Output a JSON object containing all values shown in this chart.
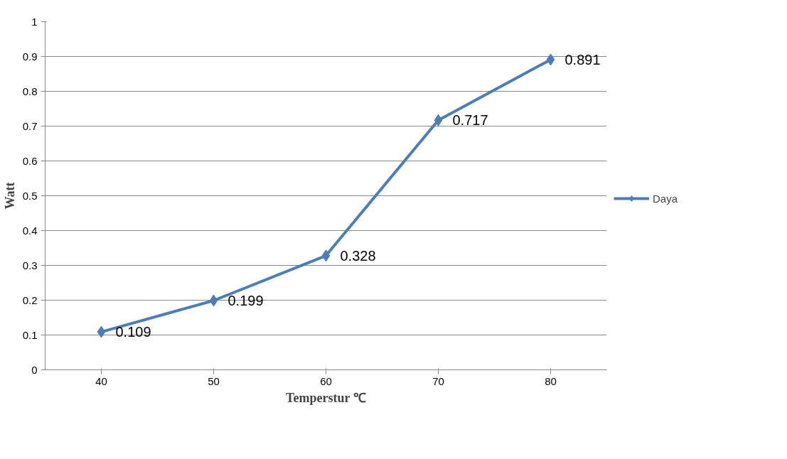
{
  "chart_data": {
    "type": "line",
    "xlabel": "Temperstur ℃",
    "ylabel": "Watt",
    "categories": [
      "40",
      "50",
      "60",
      "70",
      "80"
    ],
    "series": [
      {
        "name": "Daya",
        "color": "#4a7ebb",
        "values": [
          0.109,
          0.199,
          0.328,
          0.717,
          0.891
        ]
      }
    ],
    "ylim": [
      0,
      1
    ],
    "yticks": [
      0,
      0.1,
      0.2,
      0.3,
      0.4,
      0.5,
      0.6,
      0.7,
      0.8,
      0.9,
      1
    ],
    "grid": "y",
    "legend": "right",
    "marker": "diamond",
    "line_style": "solid",
    "data_labels": true
  }
}
